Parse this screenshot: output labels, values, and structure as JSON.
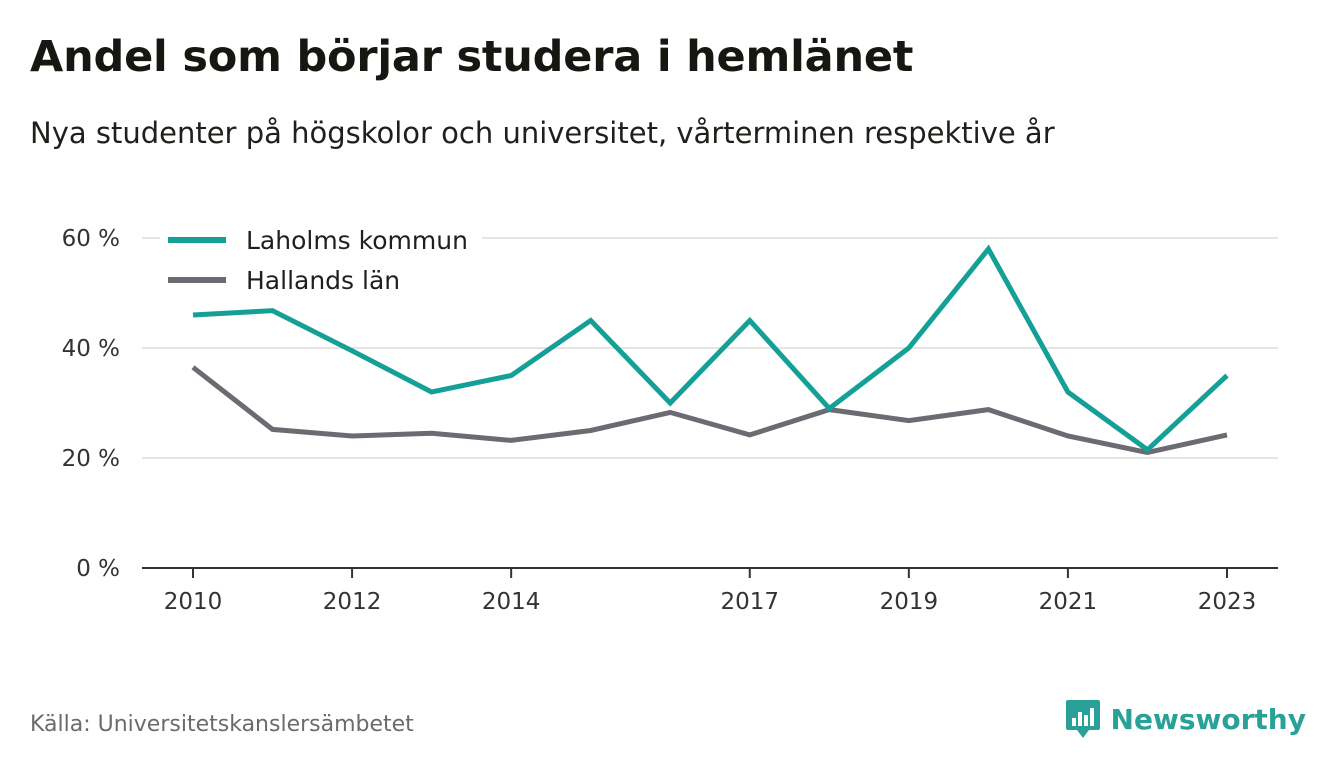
{
  "header": {
    "title": "Andel som börjar studera i hemlänet",
    "subtitle": "Nya studenter på högskolor och universitet, vårterminen respektive år"
  },
  "footer": {
    "source": "Källa: Universitetskanslersämbetet",
    "brand": "Newsworthy",
    "brand_icon": "bar-chart-speech-bubble-icon"
  },
  "colors": {
    "laholm": "#14a096",
    "halland": "#6d6b72",
    "grid": "#dcdcdc",
    "axis": "#333333",
    "brand": "#2aa198"
  },
  "chart_data": {
    "type": "line",
    "x": [
      2010,
      2011,
      2012,
      2013,
      2014,
      2015,
      2016,
      2017,
      2018,
      2019,
      2020,
      2021,
      2022,
      2023
    ],
    "x_tick_labels": [
      "2010",
      "2012",
      "2014",
      "2017",
      "2019",
      "2021",
      "2023"
    ],
    "y_tick_labels": [
      "0 %",
      "20 %",
      "40 %",
      "60 %"
    ],
    "ylim": [
      0,
      60
    ],
    "grid": true,
    "legend_position": "top-left",
    "series": [
      {
        "name": "Laholms kommun",
        "values": [
          46,
          46.8,
          39.5,
          32,
          35,
          45,
          30,
          45,
          29,
          40,
          58,
          32,
          21.5,
          35
        ]
      },
      {
        "name": "Hallands län",
        "values": [
          36.5,
          25.2,
          24,
          24.5,
          23.2,
          25,
          28.3,
          24.2,
          28.8,
          26.8,
          28.8,
          24,
          21,
          24.2
        ]
      }
    ]
  }
}
